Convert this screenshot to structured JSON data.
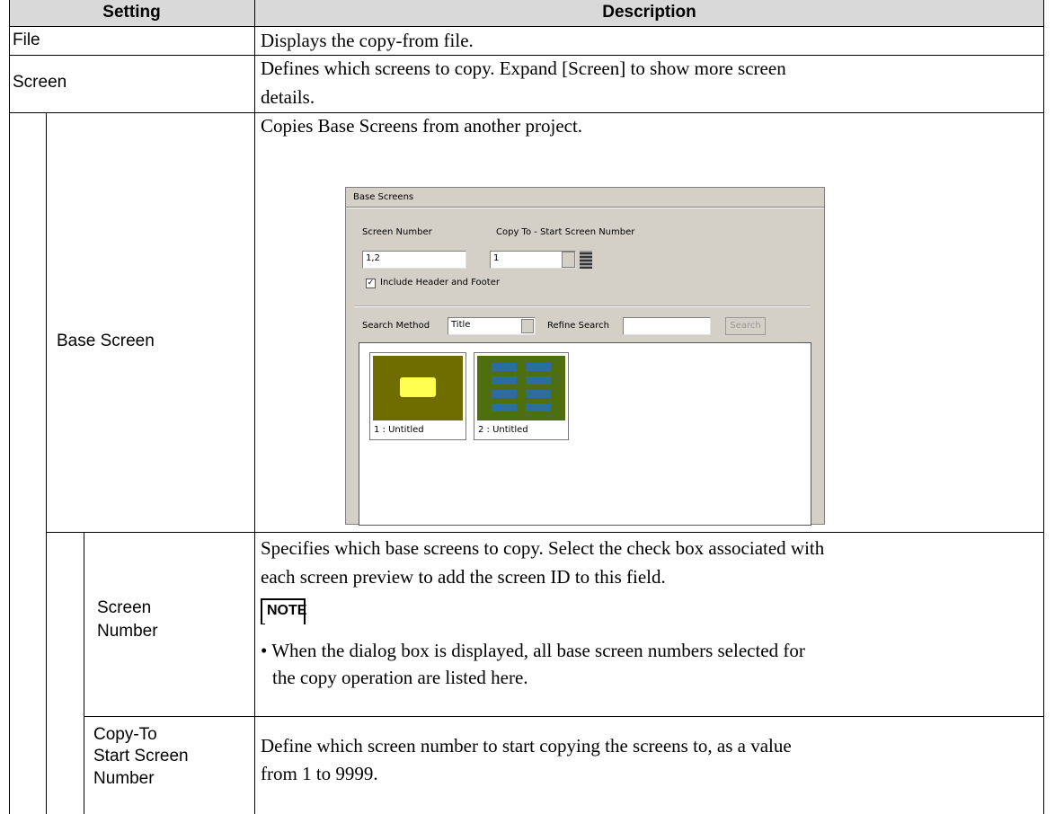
{
  "table": {
    "headers": [
      "Setting",
      "Description"
    ],
    "rows": [
      {
        "setting": "File",
        "description": [
          "Displays the copy-from file."
        ]
      },
      {
        "setting": "Screen",
        "description": [
          "Defines which screens to copy. Expand [Screen] to show more screen",
          "details."
        ]
      },
      {
        "setting": "Base Screen",
        "description": [
          "Copies Base Screens from another project."
        ],
        "dialog": {
          "title": "Base Screens",
          "screen_number_label": "Screen Number",
          "copy_to_label": "Copy To - Start Screen Number",
          "screen_number_value": "1,2",
          "copy_to_value": "1",
          "include_checkbox": "Include Header and Footer",
          "search_method_label": "Search Method",
          "search_method_value": "Title",
          "refine_label": "Refine Search",
          "search_button": "Search",
          "thumbnails": [
            "1 : Untitled",
            "2 : Untitled"
          ]
        }
      },
      {
        "setting": [
          "Screen",
          "Number"
        ],
        "description": [
          "Specifies which base screens to copy. Select the check box associated with",
          "each screen preview to add the screen ID to this field."
        ],
        "note": {
          "label": "NOTE",
          "text": [
            "• When the dialog box is displayed, all base screen numbers selected for",
            "the copy operation are listed here."
          ]
        }
      },
      {
        "setting": [
          "Copy-To",
          "Start Screen",
          "Number"
        ],
        "description": [
          "Define which screen number to start copying the screens to, as a value",
          "from 1 to 9999."
        ]
      }
    ]
  }
}
